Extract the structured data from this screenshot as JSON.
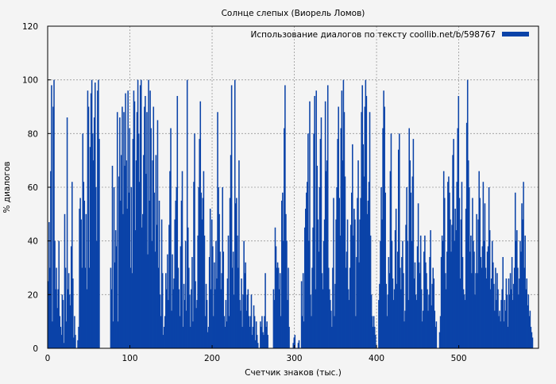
{
  "chart_data": {
    "type": "bar",
    "title": "Солнце слепых (Виорель Ломов)",
    "xlabel": "Счетчик знаков (тыс.)",
    "ylabel": "% диалогов",
    "xlim": [
      0,
      597
    ],
    "ylim": [
      0,
      120
    ],
    "xticks": [
      0,
      100,
      200,
      300,
      400,
      500
    ],
    "yticks": [
      0,
      20,
      40,
      60,
      80,
      100,
      120
    ],
    "grid": true,
    "legend_position": "top-right",
    "series": [
      {
        "name": "Использование диалогов по тексту coollib.net/b/598767",
        "color": "#0b43a8",
        "x_start": 0,
        "x_step": 1,
        "values": [
          25,
          47,
          30,
          66,
          98,
          10,
          90,
          100,
          40,
          22,
          30,
          15,
          22,
          40,
          12,
          8,
          5,
          20,
          18,
          2,
          50,
          30,
          10,
          86,
          22,
          28,
          20,
          16,
          38,
          62,
          26,
          4,
          12,
          5,
          0,
          0,
          3,
          8,
          52,
          56,
          48,
          30,
          80,
          62,
          55,
          30,
          50,
          22,
          96,
          90,
          30,
          75,
          95,
          100,
          80,
          70,
          86,
          99,
          60,
          40,
          96,
          100,
          78,
          0,
          0,
          0,
          0,
          0,
          0,
          0,
          0,
          0,
          0,
          0,
          0,
          0,
          30,
          22,
          68,
          10,
          60,
          32,
          44,
          38,
          88,
          10,
          64,
          86,
          55,
          72,
          90,
          50,
          88,
          68,
          95,
          70,
          52,
          96,
          58,
          82,
          30,
          60,
          28,
          78,
          96,
          92,
          44,
          70,
          88,
          100,
          80,
          62,
          98,
          100,
          45,
          50,
          72,
          90,
          94,
          65,
          88,
          35,
          100,
          55,
          96,
          82,
          40,
          70,
          90,
          58,
          36,
          72,
          46,
          85,
          30,
          55,
          20,
          12,
          48,
          28,
          5,
          8,
          12,
          28,
          22,
          35,
          18,
          46,
          66,
          82,
          14,
          35,
          22,
          26,
          48,
          55,
          60,
          94,
          30,
          22,
          12,
          38,
          55,
          66,
          8,
          24,
          18,
          40,
          14,
          100,
          45,
          30,
          20,
          8,
          22,
          34,
          10,
          62,
          80,
          25,
          15,
          18,
          42,
          60,
          78,
          92,
          58,
          48,
          56,
          66,
          42,
          12,
          24,
          18,
          6,
          8,
          34,
          52,
          22,
          48,
          38,
          12,
          32,
          22,
          40,
          26,
          88,
          60,
          50,
          36,
          22,
          28,
          60,
          36,
          12,
          8,
          18,
          10,
          26,
          42,
          12,
          56,
          72,
          98,
          30,
          36,
          20,
          100,
          54,
          56,
          42,
          30,
          70,
          18,
          14,
          26,
          8,
          20,
          40,
          28,
          32,
          14,
          20,
          22,
          12,
          8,
          12,
          20,
          5,
          8,
          16,
          12,
          3,
          10,
          5,
          2,
          0,
          0,
          10,
          8,
          12,
          6,
          5,
          12,
          28,
          8,
          10,
          5,
          0,
          0,
          0,
          0,
          0,
          0,
          22,
          18,
          45,
          38,
          30,
          32,
          30,
          22,
          28,
          12,
          55,
          58,
          40,
          82,
          98,
          50,
          40,
          18,
          30,
          8,
          0,
          0,
          0,
          0,
          2,
          4,
          5,
          0,
          0,
          0,
          2,
          3,
          0,
          0,
          25,
          12,
          28,
          10,
          45,
          52,
          58,
          62,
          80,
          40,
          92,
          20,
          12,
          30,
          45,
          80,
          94,
          22,
          96,
          68,
          48,
          36,
          60,
          78,
          86,
          28,
          22,
          40,
          48,
          92,
          66,
          70,
          98,
          30,
          22,
          18,
          14,
          8,
          30,
          56,
          12,
          24,
          48,
          60,
          78,
          90,
          56,
          42,
          82,
          96,
          70,
          100,
          88,
          64,
          30,
          36,
          48,
          22,
          18,
          30,
          46,
          58,
          76,
          42,
          52,
          48,
          12,
          34,
          56,
          70,
          32,
          48,
          56,
          88,
          98,
          76,
          64,
          90,
          100,
          94,
          50,
          55,
          62,
          88,
          42,
          20,
          12,
          8,
          12,
          8,
          5,
          0,
          0,
          0,
          18,
          24,
          40,
          60,
          48,
          82,
          96,
          90,
          58,
          24,
          12,
          20,
          34,
          28,
          66,
          80,
          40,
          26,
          18,
          22,
          44,
          52,
          24,
          36,
          74,
          80,
          30,
          22,
          34,
          40,
          28,
          10,
          14,
          46,
          60,
          40,
          18,
          82,
          70,
          58,
          40,
          64,
          78,
          26,
          32,
          20,
          18,
          38,
          54,
          32,
          28,
          42,
          22,
          10,
          14,
          36,
          42,
          32,
          28,
          22,
          14,
          20,
          34,
          44,
          16,
          24,
          30,
          26,
          14,
          8,
          10,
          0,
          0,
          0,
          6,
          12,
          34,
          42,
          40,
          66,
          56,
          28,
          22,
          36,
          62,
          64,
          58,
          48,
          36,
          46,
          72,
          78,
          40,
          52,
          44,
          62,
          82,
          94,
          56,
          26,
          48,
          62,
          34,
          22,
          20,
          18,
          52,
          84,
          100,
          70,
          60,
          36,
          42,
          28,
          56,
          40,
          36,
          20,
          28,
          50,
          28,
          48,
          66,
          56,
          34,
          30,
          38,
          62,
          40,
          54,
          30,
          26,
          36,
          38,
          60,
          44,
          22,
          26,
          40,
          32,
          24,
          14,
          30,
          18,
          28,
          22,
          12,
          14,
          10,
          18,
          22,
          34,
          10,
          18,
          14,
          26,
          20,
          8,
          26,
          20,
          28,
          22,
          34,
          18,
          24,
          30,
          58,
          40,
          44,
          30,
          20,
          26,
          40,
          36,
          54,
          48,
          62,
          30,
          42,
          22,
          26,
          16,
          20,
          12,
          14,
          8,
          6,
          4
        ]
      }
    ]
  }
}
